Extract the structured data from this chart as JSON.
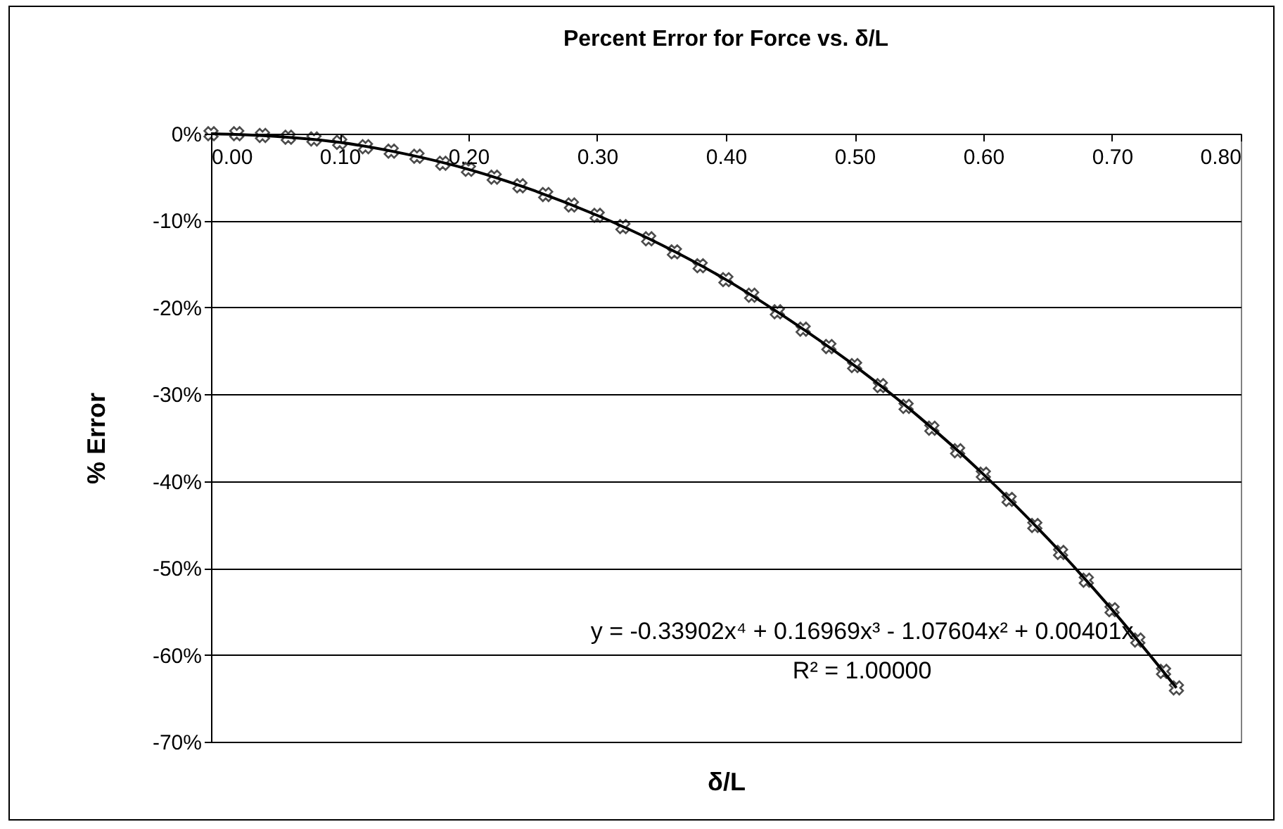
{
  "chart_data": {
    "type": "scatter",
    "title": "Percent Error for Force vs. δ/L",
    "xlabel": "δ/L",
    "ylabel": "% Error",
    "x": [
      0,
      0.02,
      0.04,
      0.06,
      0.08,
      0.1,
      0.12,
      0.14,
      0.16,
      0.18,
      0.2,
      0.22,
      0.24,
      0.26,
      0.28,
      0.3,
      0.32,
      0.34,
      0.36,
      0.38,
      0.4,
      0.42,
      0.44,
      0.46,
      0.48,
      0.5,
      0.52,
      0.54,
      0.56,
      0.58,
      0.6,
      0.62,
      0.64,
      0.66,
      0.68,
      0.7,
      0.72,
      0.74,
      0.75
    ],
    "series": [
      {
        "color": "#000000",
        "marker": "cross",
        "values": [
          0,
          0,
          -0.2,
          -0.4,
          -0.6,
          -1.0,
          -1.5,
          -2.0,
          -2.6,
          -3.4,
          -4.1,
          -5.0,
          -6.0,
          -7.0,
          -8.2,
          -9.4,
          -10.7,
          -12.1,
          -13.6,
          -15.2,
          -16.8,
          -18.6,
          -20.5,
          -22.5,
          -24.5,
          -26.7,
          -29.0,
          -31.4,
          -33.9,
          -36.5,
          -39.2,
          -42.1,
          -45.1,
          -48.2,
          -51.4,
          -54.8,
          -58.3,
          -61.9,
          -63.8
        ]
      },
      {
        "type": "line",
        "color": "#000000",
        "line_style": "solid",
        "x": [
          0,
          0.05,
          0.1,
          0.15,
          0.2,
          0.25,
          0.3,
          0.35,
          0.4,
          0.45,
          0.5,
          0.55,
          0.6,
          0.65,
          0.7,
          0.75
        ],
        "values": [
          0,
          -0.3,
          -1.0,
          -2.3,
          -4.1,
          -6.5,
          -9.4,
          -12.8,
          -16.8,
          -21.5,
          -26.7,
          -32.6,
          -39.2,
          -46.6,
          -54.8,
          -63.8
        ]
      }
    ],
    "xlim": [
      0,
      0.8
    ],
    "xticks": [
      {
        "value": 0,
        "label": "0.00"
      },
      {
        "value": 0.1,
        "label": "0.10"
      },
      {
        "value": 0.2,
        "label": "0.20"
      },
      {
        "value": 0.3,
        "label": "0.30"
      },
      {
        "value": 0.4,
        "label": "0.40"
      },
      {
        "value": 0.5,
        "label": "0.50"
      },
      {
        "value": 0.6,
        "label": "0.60"
      },
      {
        "value": 0.7,
        "label": "0.70"
      },
      {
        "value": 0.8,
        "label": "0.80"
      }
    ],
    "ylim": [
      -70,
      0
    ],
    "yticks": [
      {
        "value": 0,
        "label": "0%"
      },
      {
        "value": -10,
        "label": "-10%"
      },
      {
        "value": -20,
        "label": "-20%"
      },
      {
        "value": -30,
        "label": "-30%"
      },
      {
        "value": -40,
        "label": "-40%"
      },
      {
        "value": -50,
        "label": "-50%"
      },
      {
        "value": -60,
        "label": "-60%"
      },
      {
        "value": -70,
        "label": "-70%"
      }
    ],
    "grid": "y",
    "annotations": [
      "y = -0.33902x⁴ + 0.16969x³ - 1.07604x² + 0.00401x",
      "R² = 1.00000"
    ]
  }
}
